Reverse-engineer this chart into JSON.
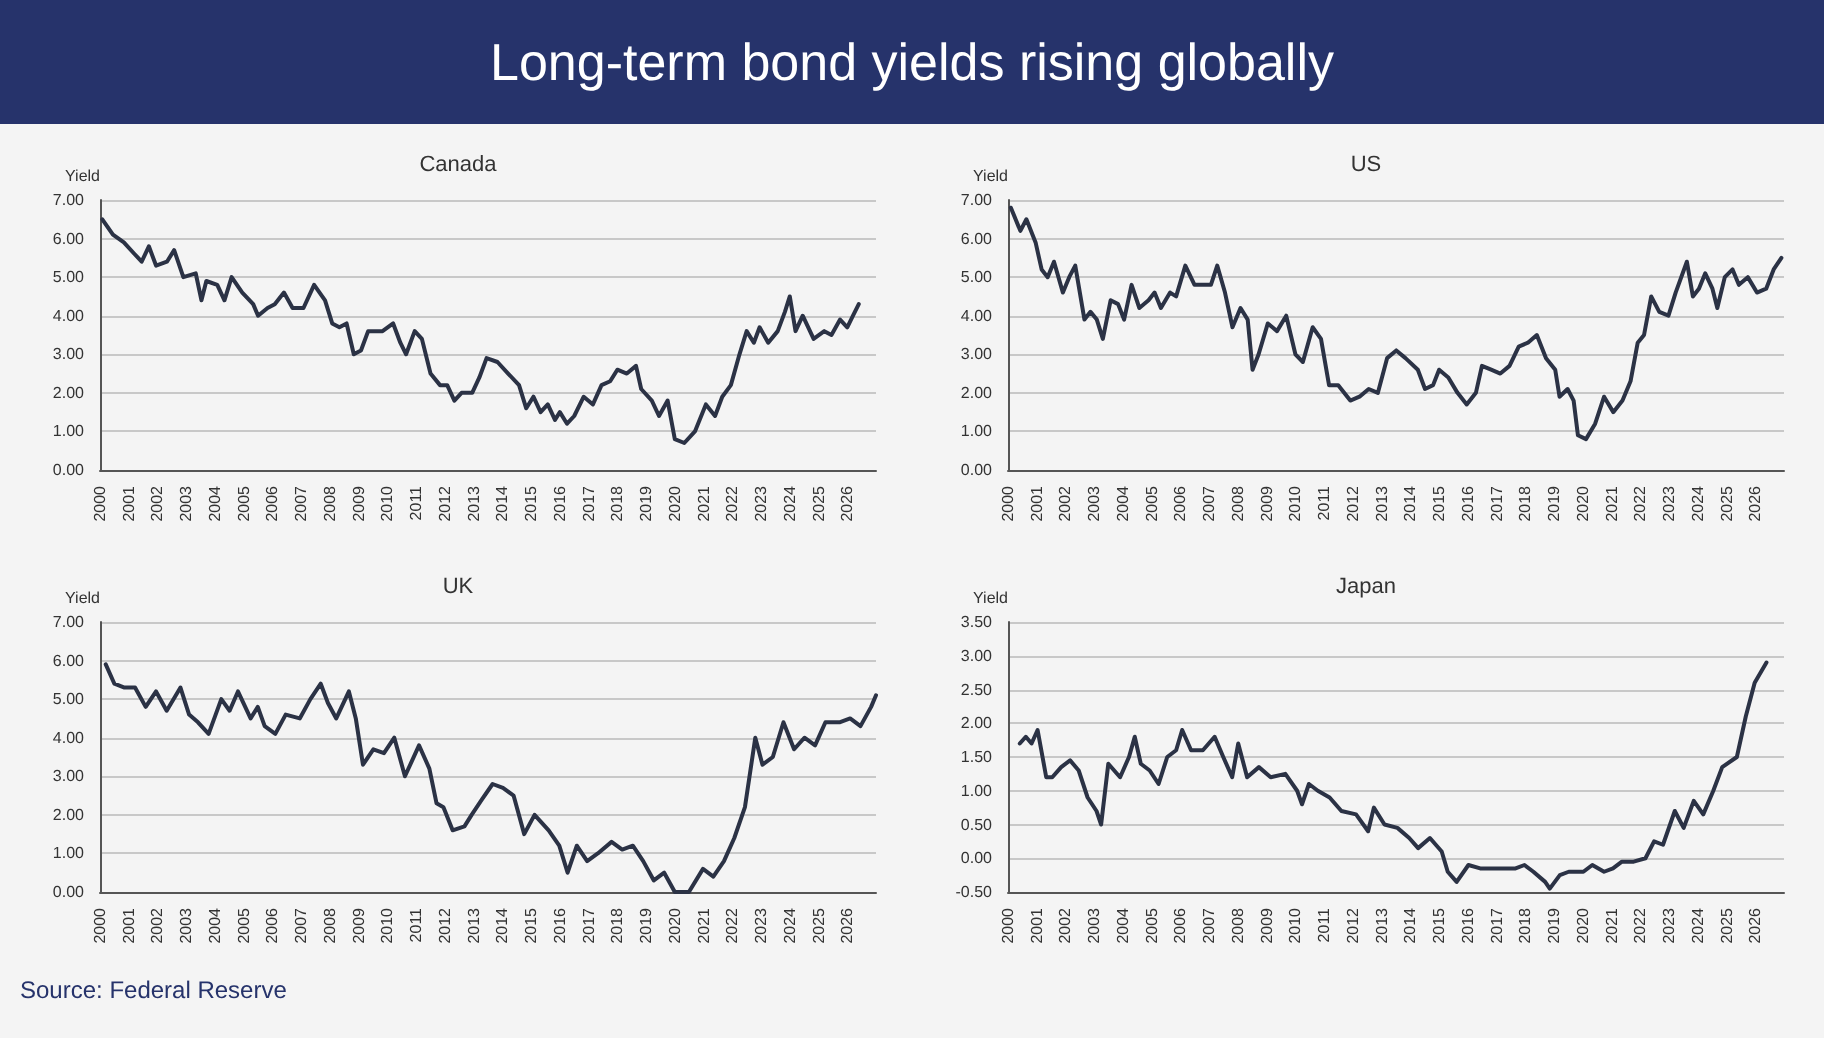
{
  "chart_data": [
    {
      "type": "line",
      "title": "Canada",
      "ylabel": "Yield",
      "annotations": [
        "Long-term bond yields rising globally"
      ],
      "grid": "y",
      "marker": "none",
      "line_style": "solid",
      "xlim": [
        2000,
        2027
      ],
      "xticks": [
        2000,
        2001,
        2002,
        2003,
        2004,
        2005,
        2006,
        2007,
        2008,
        2009,
        2010,
        2011,
        2012,
        2013,
        2014,
        2015,
        2016,
        2017,
        2018,
        2019,
        2020,
        2021,
        2022,
        2023,
        2024,
        2025,
        2026
      ],
      "ylim": [
        0,
        7
      ],
      "yticks": [
        {
          "value": 0,
          "label": "0.00"
        },
        {
          "value": 1,
          "label": "1.00"
        },
        {
          "value": 2,
          "label": "2.00"
        },
        {
          "value": 3,
          "label": "3.00"
        },
        {
          "value": 4,
          "label": "4.00"
        },
        {
          "value": 5,
          "label": "5.00"
        },
        {
          "value": 6,
          "label": "6.00"
        },
        {
          "value": 7,
          "label": "7.00"
        }
      ],
      "series": [
        {
          "color": "#2b3245",
          "x": [
            2000.08,
            2000.45,
            2000.83,
            2001.2,
            2001.45,
            2001.7,
            2001.95,
            2002.33,
            2002.58,
            2002.9,
            2003.33,
            2003.53,
            2003.7,
            2004.08,
            2004.33,
            2004.58,
            2004.95,
            2005.33,
            2005.5,
            2005.83,
            2006.08,
            2006.4,
            2006.7,
            2007.08,
            2007.45,
            2007.83,
            2008.08,
            2008.33,
            2008.58,
            2008.83,
            2009.08,
            2009.33,
            2009.83,
            2010.2,
            2010.45,
            2010.65,
            2010.95,
            2011.2,
            2011.5,
            2011.83,
            2012.08,
            2012.33,
            2012.58,
            2012.95,
            2013.2,
            2013.45,
            2013.83,
            2014.2,
            2014.58,
            2014.83,
            2015.08,
            2015.33,
            2015.58,
            2015.83,
            2016,
            2016.25,
            2016.5,
            2016.83,
            2017.15,
            2017.45,
            2017.75,
            2018,
            2018.33,
            2018.65,
            2018.83,
            2019.2,
            2019.45,
            2019.75,
            2020,
            2020.33,
            2020.7,
            2021.08,
            2021.4,
            2021.65,
            2021.95,
            2022.25,
            2022.5,
            2022.75,
            2022.95,
            2023.25,
            2023.58,
            2023.83,
            2024,
            2024.2,
            2024.45,
            2024.83,
            2025.2,
            2025.45,
            2025.75,
            2026,
            2026.2,
            2026.4
          ],
          "values": [
            6.5,
            6.1,
            5.9,
            5.6,
            5.4,
            5.8,
            5.3,
            5.4,
            5.7,
            5.0,
            5.1,
            4.4,
            4.9,
            4.8,
            4.4,
            5.0,
            4.6,
            4.3,
            4.0,
            4.2,
            4.3,
            4.6,
            4.2,
            4.2,
            4.8,
            4.4,
            3.8,
            3.7,
            3.8,
            3.0,
            3.1,
            3.6,
            3.6,
            3.8,
            3.3,
            3.0,
            3.6,
            3.4,
            2.5,
            2.2,
            2.2,
            1.8,
            2.0,
            2.0,
            2.4,
            2.9,
            2.8,
            2.5,
            2.2,
            1.6,
            1.9,
            1.5,
            1.7,
            1.3,
            1.5,
            1.2,
            1.4,
            1.9,
            1.7,
            2.2,
            2.3,
            2.6,
            2.5,
            2.7,
            2.1,
            1.8,
            1.4,
            1.8,
            0.8,
            0.7,
            1.0,
            1.7,
            1.4,
            1.9,
            2.2,
            3.0,
            3.6,
            3.3,
            3.7,
            3.3,
            3.6,
            4.1,
            4.5,
            3.6,
            4.0,
            3.4,
            3.6,
            3.5,
            3.9,
            3.7,
            4.0,
            4.3
          ]
        }
      ]
    },
    {
      "type": "line",
      "title": "US",
      "ylabel": "Yield",
      "grid": "y",
      "marker": "none",
      "line_style": "solid",
      "xlim": [
        2000,
        2027
      ],
      "xticks": [
        2000,
        2001,
        2002,
        2003,
        2004,
        2005,
        2006,
        2007,
        2008,
        2009,
        2010,
        2011,
        2012,
        2013,
        2014,
        2015,
        2016,
        2017,
        2018,
        2019,
        2020,
        2021,
        2022,
        2023,
        2024,
        2025,
        2026
      ],
      "ylim": [
        0,
        7
      ],
      "yticks": [
        {
          "value": 0,
          "label": "0.00"
        },
        {
          "value": 1,
          "label": "1.00"
        },
        {
          "value": 2,
          "label": "2.00"
        },
        {
          "value": 3,
          "label": "3.00"
        },
        {
          "value": 4,
          "label": "4.00"
        },
        {
          "value": 5,
          "label": "5.00"
        },
        {
          "value": 6,
          "label": "6.00"
        },
        {
          "value": 7,
          "label": "7.00"
        }
      ],
      "series": [
        {
          "color": "#2b3245",
          "x": [
            2000.1,
            2000.43,
            2000.64,
            2000.96,
            2001.17,
            2001.38,
            2001.6,
            2001.91,
            2002.13,
            2002.34,
            2002.66,
            2002.87,
            2003.09,
            2003.3,
            2003.57,
            2003.83,
            2004.04,
            2004.3,
            2004.57,
            2004.89,
            2005.1,
            2005.32,
            2005.64,
            2005.85,
            2006.17,
            2006.49,
            2006.81,
            2007.06,
            2007.28,
            2007.55,
            2007.81,
            2008.09,
            2008.34,
            2008.51,
            2008.72,
            2009.04,
            2009.36,
            2009.68,
            2010,
            2010.26,
            2010.6,
            2010.89,
            2011.17,
            2011.49,
            2011.91,
            2012.23,
            2012.55,
            2012.87,
            2013.19,
            2013.51,
            2013.83,
            2014.26,
            2014.51,
            2014.79,
            2015,
            2015.32,
            2015.64,
            2015.96,
            2016.28,
            2016.49,
            2016.81,
            2017.13,
            2017.45,
            2017.77,
            2018.09,
            2018.4,
            2018.72,
            2019.04,
            2019.19,
            2019.47,
            2019.68,
            2019.83,
            2020.11,
            2020.43,
            2020.74,
            2021.06,
            2021.38,
            2021.66,
            2021.91,
            2022.13,
            2022.38,
            2022.66,
            2022.98,
            2023.23,
            2023.62,
            2023.83,
            2024.04,
            2024.26,
            2024.51,
            2024.68,
            2024.94,
            2025.21,
            2025.43,
            2025.74,
            2026.06,
            2026.38,
            2026.64,
            2026.91
          ],
          "values": [
            6.8,
            6.2,
            6.5,
            5.9,
            5.2,
            5.0,
            5.4,
            4.6,
            5.0,
            5.3,
            3.9,
            4.1,
            3.9,
            3.4,
            4.4,
            4.3,
            3.9,
            4.8,
            4.2,
            4.4,
            4.6,
            4.2,
            4.6,
            4.5,
            5.3,
            4.8,
            4.8,
            4.8,
            5.3,
            4.6,
            3.7,
            4.2,
            3.9,
            2.6,
            3.0,
            3.8,
            3.6,
            4.0,
            3.0,
            2.8,
            3.7,
            3.4,
            2.2,
            2.2,
            1.8,
            1.9,
            2.1,
            2.0,
            2.9,
            3.1,
            2.9,
            2.6,
            2.1,
            2.2,
            2.6,
            2.4,
            2.0,
            1.7,
            2.0,
            2.7,
            2.6,
            2.5,
            2.7,
            3.2,
            3.3,
            3.5,
            2.9,
            2.6,
            1.9,
            2.1,
            1.8,
            0.9,
            0.8,
            1.2,
            1.9,
            1.5,
            1.8,
            2.3,
            3.3,
            3.5,
            4.5,
            4.1,
            4.0,
            4.6,
            5.4,
            4.5,
            4.7,
            5.1,
            4.7,
            4.2,
            5.0,
            5.2,
            4.8,
            5.0,
            4.6,
            4.7,
            5.2,
            5.5
          ]
        }
      ]
    },
    {
      "type": "line",
      "title": "UK",
      "ylabel": "Yield",
      "annotations": [
        "Source: Federal Reserve"
      ],
      "grid": "y",
      "marker": "none",
      "line_style": "solid",
      "xlim": [
        2000,
        2027
      ],
      "xticks": [
        2000,
        2001,
        2002,
        2003,
        2004,
        2005,
        2006,
        2007,
        2008,
        2009,
        2010,
        2011,
        2012,
        2013,
        2014,
        2015,
        2016,
        2017,
        2018,
        2019,
        2020,
        2021,
        2022,
        2023,
        2024,
        2025,
        2026
      ],
      "ylim": [
        0,
        7
      ],
      "yticks": [
        {
          "value": 0,
          "label": "0.00"
        },
        {
          "value": 1,
          "label": "1.00"
        },
        {
          "value": 2,
          "label": "2.00"
        },
        {
          "value": 3,
          "label": "3.00"
        },
        {
          "value": 4,
          "label": "4.00"
        },
        {
          "value": 5,
          "label": "5.00"
        },
        {
          "value": 6,
          "label": "6.00"
        },
        {
          "value": 7,
          "label": "7.00"
        }
      ],
      "series": [
        {
          "color": "#2b3245",
          "x": [
            2000.2,
            2000.5,
            2000.85,
            2001.22,
            2001.59,
            2001.95,
            2002.32,
            2002.8,
            2003.1,
            2003.41,
            2003.78,
            2004.22,
            2004.51,
            2004.8,
            2005.24,
            2005.49,
            2005.73,
            2006.1,
            2006.46,
            2006.95,
            2007.32,
            2007.68,
            2007.93,
            2008.22,
            2008.66,
            2008.9,
            2009.15,
            2009.51,
            2009.88,
            2010.24,
            2010.61,
            2011.1,
            2011.46,
            2011.71,
            2011.95,
            2012.27,
            2012.68,
            2012.93,
            2013.29,
            2013.66,
            2014.02,
            2014.39,
            2014.76,
            2015.12,
            2015.61,
            2015.98,
            2016.27,
            2016.59,
            2016.95,
            2017.32,
            2017.8,
            2018.17,
            2018.54,
            2018.9,
            2019.27,
            2019.63,
            2020,
            2020.49,
            2020.98,
            2021.34,
            2021.71,
            2022.07,
            2022.44,
            2022.8,
            2023.05,
            2023.41,
            2023.78,
            2024.15,
            2024.51,
            2024.88,
            2025.24,
            2025.73,
            2026.1,
            2026.46,
            2026.83,
            2027
          ],
          "values": [
            5.9,
            5.4,
            5.3,
            5.3,
            4.8,
            5.2,
            4.7,
            5.3,
            4.6,
            4.4,
            4.1,
            5.0,
            4.7,
            5.2,
            4.5,
            4.8,
            4.3,
            4.1,
            4.6,
            4.5,
            5.0,
            5.4,
            4.9,
            4.5,
            5.2,
            4.5,
            3.3,
            3.7,
            3.6,
            4.0,
            3.0,
            3.8,
            3.2,
            2.3,
            2.2,
            1.6,
            1.7,
            2.0,
            2.4,
            2.8,
            2.7,
            2.5,
            1.5,
            2.0,
            1.6,
            1.2,
            0.5,
            1.2,
            0.8,
            1.0,
            1.3,
            1.1,
            1.2,
            0.8,
            0.3,
            0.5,
            0.0,
            0.0,
            0.6,
            0.4,
            0.8,
            1.4,
            2.2,
            4.0,
            3.3,
            3.5,
            4.4,
            3.7,
            4.0,
            3.8,
            4.4,
            4.4,
            4.5,
            4.3,
            4.8,
            5.1
          ]
        }
      ]
    },
    {
      "type": "line",
      "title": "Japan",
      "ylabel": "Yield",
      "grid": "y",
      "marker": "none",
      "line_style": "solid",
      "xlim": [
        2000,
        2027
      ],
      "xticks": [
        2000,
        2001,
        2002,
        2003,
        2004,
        2005,
        2006,
        2007,
        2008,
        2009,
        2010,
        2011,
        2012,
        2013,
        2014,
        2015,
        2016,
        2017,
        2018,
        2019,
        2020,
        2021,
        2022,
        2023,
        2024,
        2025,
        2026
      ],
      "ylim": [
        -0.5,
        3.5
      ],
      "yticks": [
        {
          "value": -0.5,
          "label": "-0.50"
        },
        {
          "value": 0,
          "label": "0.00"
        },
        {
          "value": 0.5,
          "label": "0.50"
        },
        {
          "value": 1,
          "label": "1.00"
        },
        {
          "value": 1.5,
          "label": "1.50"
        },
        {
          "value": 2,
          "label": "2.00"
        },
        {
          "value": 2.5,
          "label": "2.50"
        },
        {
          "value": 3,
          "label": "3.00"
        },
        {
          "value": 3.5,
          "label": "3.50"
        }
      ],
      "series": [
        {
          "color": "#2b3245",
          "x": [
            2000.41,
            2000.62,
            2000.82,
            2001.03,
            2001.33,
            2001.54,
            2001.85,
            2002.16,
            2002.46,
            2002.77,
            2003.08,
            2003.24,
            2003.49,
            2003.9,
            2004.21,
            2004.41,
            2004.62,
            2004.93,
            2005.24,
            2005.54,
            2005.85,
            2006.06,
            2006.37,
            2006.78,
            2007.19,
            2007.49,
            2007.8,
            2008.01,
            2008.32,
            2008.73,
            2009.14,
            2009.65,
            2010.06,
            2010.23,
            2010.47,
            2010.78,
            2011.19,
            2011.6,
            2012.11,
            2012.53,
            2012.73,
            2013.1,
            2013.55,
            2013.96,
            2014.27,
            2014.68,
            2015.09,
            2015.3,
            2015.61,
            2016.02,
            2016.43,
            2017.04,
            2017.66,
            2017.97,
            2018.28,
            2018.69,
            2018.85,
            2019.2,
            2019.51,
            2020.02,
            2020.33,
            2020.74,
            2021.05,
            2021.36,
            2021.77,
            2022.18,
            2022.48,
            2022.79,
            2023.2,
            2023.51,
            2023.86,
            2024.19,
            2024.54,
            2024.85,
            2025.36,
            2025.67,
            2025.98,
            2026.39
          ],
          "values": [
            1.7,
            1.8,
            1.7,
            1.9,
            1.2,
            1.2,
            1.35,
            1.45,
            1.3,
            0.9,
            0.7,
            0.5,
            1.4,
            1.2,
            1.5,
            1.8,
            1.4,
            1.3,
            1.1,
            1.5,
            1.6,
            1.9,
            1.6,
            1.6,
            1.8,
            1.5,
            1.2,
            1.7,
            1.2,
            1.35,
            1.2,
            1.25,
            1.0,
            0.8,
            1.1,
            1.0,
            0.9,
            0.7,
            0.65,
            0.4,
            0.75,
            0.5,
            0.45,
            0.3,
            0.15,
            0.3,
            0.1,
            -0.2,
            -0.35,
            -0.1,
            -0.15,
            -0.15,
            -0.15,
            -0.1,
            -0.2,
            -0.35,
            -0.45,
            -0.25,
            -0.2,
            -0.2,
            -0.1,
            -0.2,
            -0.15,
            -0.05,
            -0.05,
            0.0,
            0.25,
            0.2,
            0.7,
            0.45,
            0.85,
            0.65,
            1.0,
            1.35,
            1.5,
            2.1,
            2.6,
            2.9
          ]
        }
      ]
    }
  ]
}
